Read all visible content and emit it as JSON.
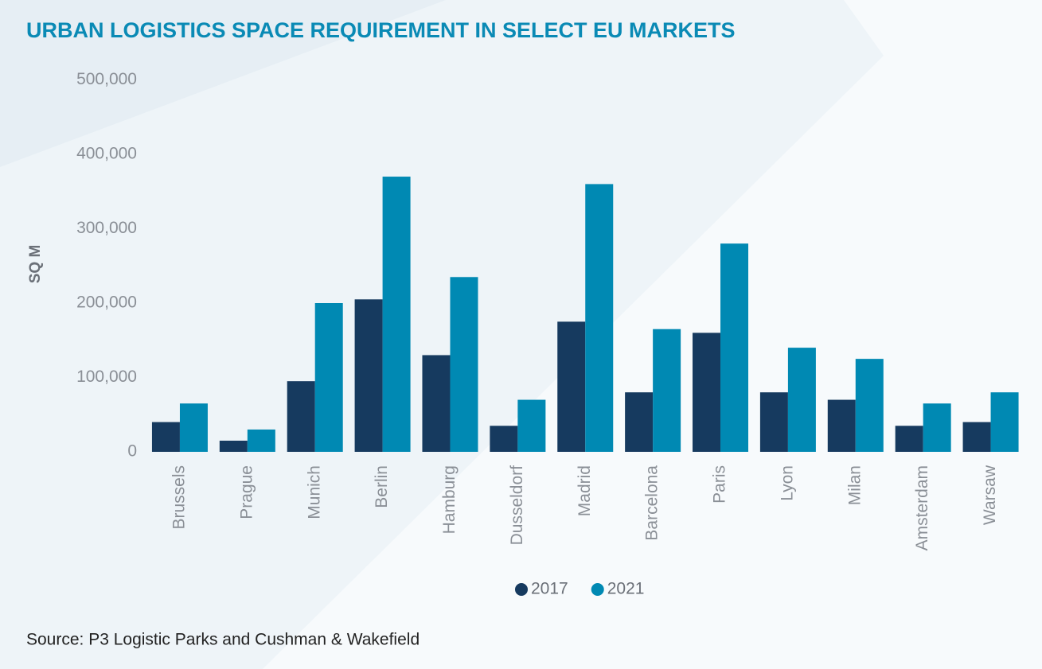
{
  "chart_data": {
    "type": "bar",
    "title": "URBAN LOGISTICS SPACE REQUIREMENT IN SELECT EU MARKETS",
    "y_label": "SQ M",
    "source": "Source: P3 Logistic Parks and Cushman & Wakefield",
    "categories": [
      "Brussels",
      "Prague",
      "Munich",
      "Berlin",
      "Hamburg",
      "Dusseldorf",
      "Madrid",
      "Barcelona",
      "Paris",
      "Lyon",
      "Milan",
      "Amsterdam",
      "Warsaw"
    ],
    "series": [
      {
        "name": "2017",
        "color": "#163a5f",
        "values": [
          40000,
          15000,
          95000,
          205000,
          130000,
          35000,
          175000,
          80000,
          160000,
          80000,
          70000,
          35000,
          40000
        ]
      },
      {
        "name": "2021",
        "color": "#0089b3",
        "values": [
          65000,
          30000,
          200000,
          370000,
          235000,
          70000,
          360000,
          165000,
          280000,
          140000,
          125000,
          65000,
          80000
        ]
      }
    ],
    "ylim": [
      0,
      500000
    ],
    "yticks": [
      0,
      {
        "value": 100000,
        "label": "100,000"
      },
      {
        "value": 200000,
        "label": "200,000"
      },
      {
        "value": 300000,
        "label": "300,000"
      },
      {
        "value": 400000,
        "label": "400,000"
      },
      {
        "value": 500000,
        "label": "500,000"
      }
    ],
    "grid": false,
    "legend": "bottom"
  }
}
